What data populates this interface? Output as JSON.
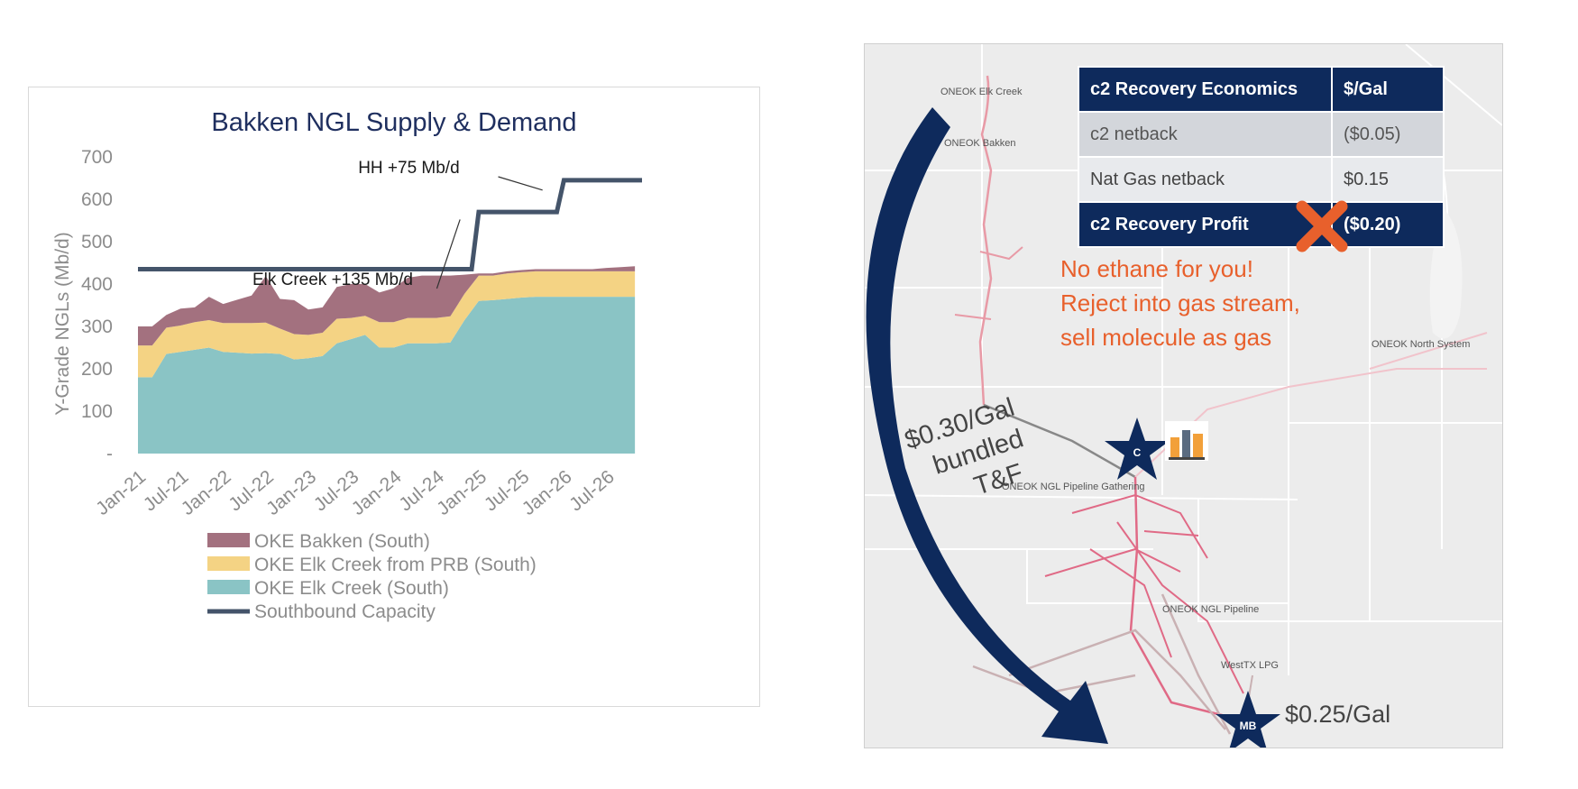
{
  "colors": {
    "bakken": "#a3717f",
    "prb": "#f4d384",
    "elk_creek": "#8ac4c5",
    "capacity": "#44546a",
    "title": "#1f2f5f",
    "navy": "#0e2a5c",
    "orange": "#e8602c"
  },
  "chart_data": {
    "type": "area",
    "title": "Bakken NGL Supply & Demand",
    "ylabel": "Y-Grade NGLs (Mb/d)",
    "xlabel": "",
    "ylim": [
      0,
      700
    ],
    "yticks": [
      "-",
      "100",
      "200",
      "300",
      "400",
      "500",
      "600",
      "700"
    ],
    "x_tick_labels": [
      "Jan-21",
      "Jul-21",
      "Jan-22",
      "Jul-22",
      "Jan-23",
      "Jul-23",
      "Jan-24",
      "Jul-24",
      "Jan-25",
      "Jul-25",
      "Jan-26",
      "Jul-26"
    ],
    "grid": false,
    "legend_position": "bottom",
    "x_dates": [
      "Jan-21",
      "Mar-21",
      "May-21",
      "Jul-21",
      "Sep-21",
      "Nov-21",
      "Jan-22",
      "Mar-22",
      "May-22",
      "Jul-22",
      "Sep-22",
      "Nov-22",
      "Jan-23",
      "Mar-23",
      "May-23",
      "Jul-23",
      "Sep-23",
      "Nov-23",
      "Jan-24",
      "Mar-24",
      "May-24",
      "Jul-24",
      "Sep-24",
      "Nov-24",
      "Jan-25",
      "Mar-25",
      "May-25",
      "Jul-25",
      "Sep-25",
      "Nov-25",
      "Jan-26",
      "Mar-26",
      "May-26",
      "Jul-26",
      "Sep-26",
      "Nov-26"
    ],
    "series": [
      {
        "name": "OKE Elk Creek (South)",
        "type": "stacked-area",
        "values": [
          180,
          180,
          235,
          240,
          245,
          250,
          240,
          238,
          236,
          237,
          235,
          222,
          225,
          230,
          260,
          270,
          280,
          250,
          250,
          260,
          260,
          260,
          262,
          315,
          360,
          362,
          365,
          368,
          370,
          370,
          370,
          370,
          370,
          370,
          370,
          370
        ]
      },
      {
        "name": "OKE Elk Creek from PRB (South)",
        "type": "stacked-area",
        "values": [
          75,
          75,
          62,
          62,
          65,
          65,
          68,
          70,
          72,
          72,
          60,
          60,
          55,
          55,
          58,
          50,
          45,
          60,
          60,
          60,
          60,
          60,
          62,
          62,
          60,
          58,
          60,
          60,
          60,
          60,
          60,
          60,
          60,
          60,
          60,
          60
        ]
      },
      {
        "name": "OKE Bakken (South)",
        "type": "stacked-area",
        "values": [
          45,
          45,
          30,
          40,
          35,
          55,
          45,
          55,
          65,
          110,
          70,
          80,
          60,
          60,
          75,
          80,
          75,
          70,
          80,
          95,
          100,
          100,
          96,
          45,
          5,
          5,
          5,
          5,
          5,
          5,
          5,
          5,
          5,
          8,
          10,
          12
        ]
      },
      {
        "name": "Southbound Capacity",
        "type": "step-line",
        "points": [
          [
            "Jan-21",
            435
          ],
          [
            "Dec-24",
            435
          ],
          [
            "Jan-25",
            570
          ],
          [
            "Dec-25",
            570
          ],
          [
            "Jan-26",
            645
          ],
          [
            "Dec-26",
            645
          ]
        ]
      }
    ],
    "annotations": [
      {
        "text": "Elk Creek +135 Mb/d",
        "at": "Nov-24",
        "value": 565
      },
      {
        "text": "HH +75 Mb/d",
        "at": "Nov-25",
        "value": 645
      }
    ]
  },
  "map": {
    "labels": [
      "ONEOK Elk Creek",
      "ONEOK Bakken",
      "ONEOK North System",
      "ONEOK NGL Pipeline Gathering",
      "ONEOK NGL Pipeline",
      "WestTX LPG"
    ],
    "bundle_text": [
      "$0.30/Gal",
      "bundled",
      "T&F"
    ],
    "hub_markers": [
      "C",
      "MB"
    ],
    "mb_price": "$0.25/Gal",
    "reject_text": [
      "No ethane for you!",
      "Reject into gas stream,",
      "sell molecule as gas"
    ]
  },
  "econ_table": {
    "headers": [
      "c2 Recovery Economics",
      "$/Gal"
    ],
    "rows": [
      [
        "c2 netback",
        "($0.05)"
      ],
      [
        "Nat Gas netback",
        "$0.15"
      ]
    ],
    "total": [
      "c2 Recovery Profit",
      "($0.20)"
    ]
  }
}
